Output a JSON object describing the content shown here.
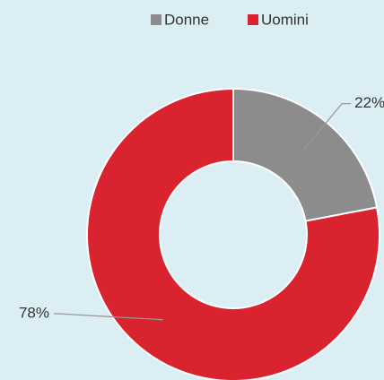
{
  "chart_data": {
    "type": "donut",
    "categories": [
      "Donne",
      "Uomini"
    ],
    "values": [
      22,
      78
    ],
    "value_labels": [
      "22%",
      "78%"
    ],
    "colors": [
      "#8c8c8c",
      "#d9232e"
    ],
    "legend": "top"
  }
}
